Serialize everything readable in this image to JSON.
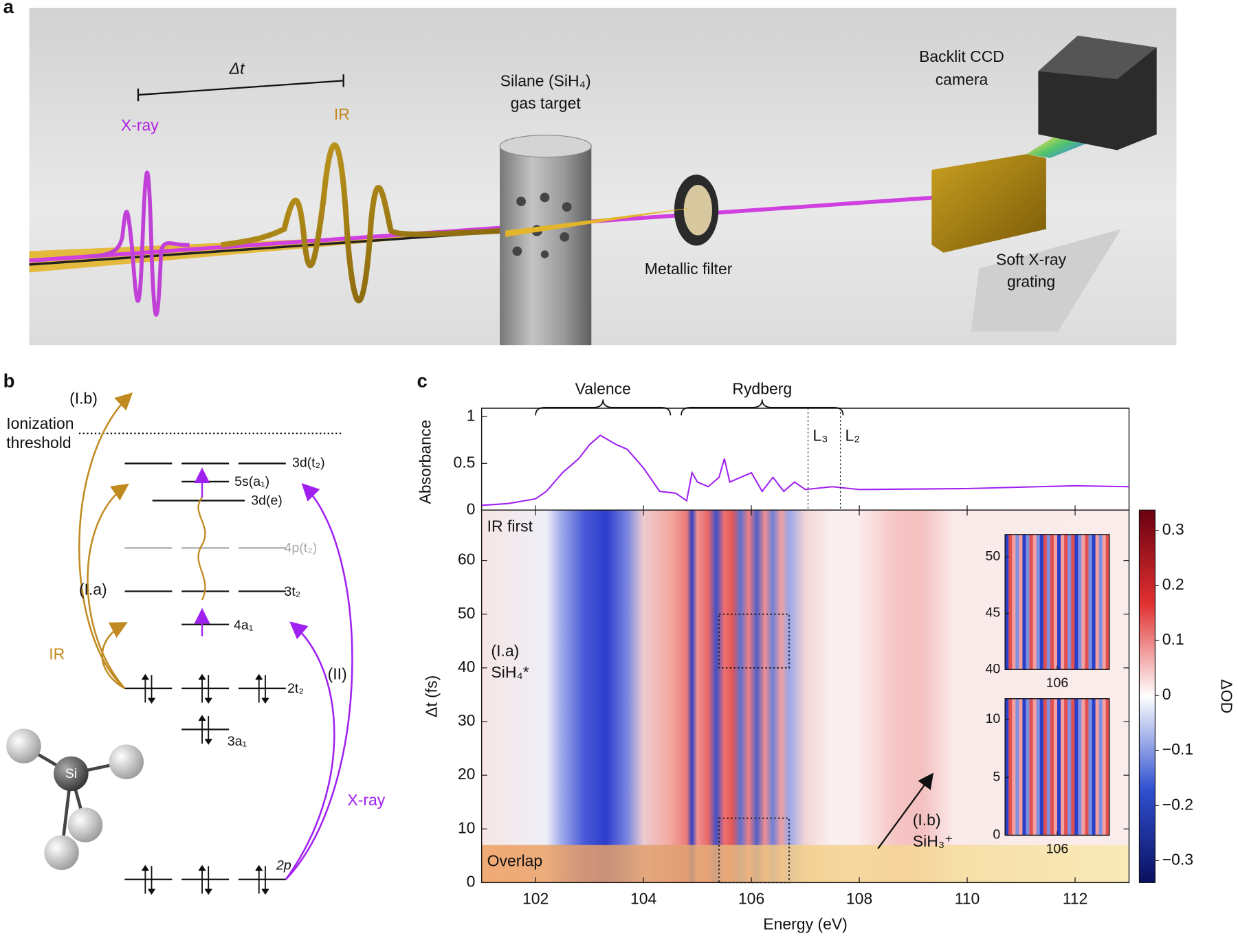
{
  "panel_a": {
    "label": "a",
    "delay": "Δt",
    "xray": "X-ray",
    "ir": "IR",
    "target": [
      "Silane (SiH₄)",
      "gas target"
    ],
    "filter": "Metallic filter",
    "camera": [
      "Backlit CCD",
      "camera"
    ],
    "grating": [
      "Soft X-ray",
      "grating"
    ]
  },
  "panel_b": {
    "label": "b",
    "ib": "(I.b)",
    "threshold": [
      "Ionization",
      "threshold"
    ],
    "levels": [
      "3d(t₂)",
      "5s(a₁)",
      "3d(e)",
      "4p(t₂)",
      "3t₂",
      "4a₁",
      "2t₂",
      "3a₁",
      "2p"
    ],
    "ia": "(I.a)",
    "ir": "IR",
    "ii": "(II)",
    "xray": "X-ray",
    "si": "Si"
  },
  "panel_c": {
    "label": "c"
  },
  "chart_data": [
    {
      "type": "line",
      "ylabel": "Absorbance",
      "color": "#a020f0",
      "xlim": [
        101,
        113
      ],
      "ylim": [
        0,
        1.09
      ],
      "yticks": [
        0,
        0.5,
        1
      ],
      "x": [
        101,
        101.5,
        102,
        102.2,
        102.5,
        102.8,
        103,
        103.2,
        103.5,
        103.7,
        104,
        104.3,
        104.6,
        104.8,
        104.9,
        105,
        105.2,
        105.4,
        105.5,
        105.6,
        105.8,
        106,
        106.2,
        106.4,
        106.6,
        106.8,
        107,
        107.5,
        108,
        110,
        112,
        113
      ],
      "values": [
        0.05,
        0.07,
        0.12,
        0.2,
        0.4,
        0.55,
        0.7,
        0.8,
        0.7,
        0.65,
        0.45,
        0.2,
        0.18,
        0.1,
        0.4,
        0.3,
        0.25,
        0.35,
        0.55,
        0.3,
        0.35,
        0.4,
        0.2,
        0.35,
        0.2,
        0.3,
        0.22,
        0.25,
        0.22,
        0.23,
        0.26,
        0.25
      ],
      "braces": [
        {
          "label": "Valence",
          "span": [
            102,
            104.5
          ]
        },
        {
          "label": "Rydberg",
          "span": [
            104.7,
            107.7
          ]
        }
      ],
      "vlines": [
        {
          "x": 107.05,
          "label": "L₃"
        },
        {
          "x": 107.65,
          "label": "L₂"
        }
      ]
    },
    {
      "type": "heatmap",
      "xlabel": "Energy (eV)",
      "ylabel": "Δt (fs)",
      "xlim": [
        101,
        113
      ],
      "ylim": [
        0,
        69.4
      ],
      "xticks": [
        102,
        104,
        106,
        108,
        110,
        112
      ],
      "yticks": [
        0,
        10,
        20,
        30,
        40,
        50,
        60
      ],
      "annotations": {
        "ir_first": "IR first",
        "ia": "(I.a)",
        "sih4": "SiH₄*",
        "ib": "(I.b)",
        "sih3": "SiH₃⁺",
        "overlap": "Overlap"
      },
      "overlap_range": [
        0,
        7
      ],
      "boxes": [
        [
          105.4,
          106.7,
          40,
          50
        ],
        [
          105.4,
          106.7,
          0,
          12
        ]
      ]
    },
    {
      "type": "heatmap",
      "xlim": [
        105.35,
        106.65
      ],
      "ylim": [
        40,
        52
      ],
      "xticks": [
        106
      ],
      "yticks": [
        40,
        45,
        50
      ]
    },
    {
      "type": "heatmap",
      "xlim": [
        105.35,
        106.65
      ],
      "ylim": [
        0,
        11.8
      ],
      "xticks": [
        106
      ],
      "yticks": [
        0,
        5,
        10
      ]
    },
    {
      "type": "colorbar",
      "label": "ΔOD",
      "lim": [
        -0.34,
        0.337
      ],
      "ticks": [
        {
          "value": -0.3,
          "label": "−0.3"
        },
        {
          "value": -0.2,
          "label": "−0.2"
        },
        {
          "value": -0.1,
          "label": "−0.1"
        },
        0,
        0.1,
        0.2,
        0.3
      ]
    }
  ]
}
